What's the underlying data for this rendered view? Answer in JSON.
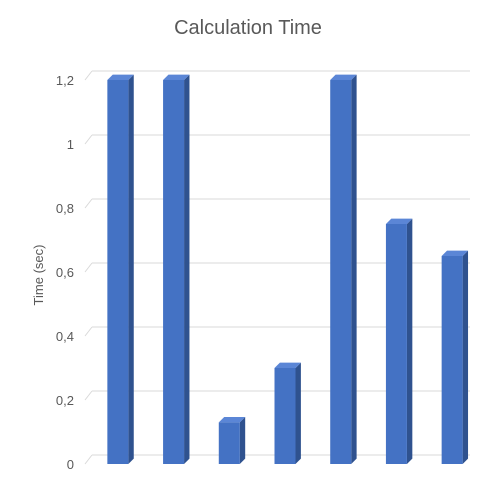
{
  "chart_data": {
    "type": "bar",
    "title": "Calculation Time",
    "xlabel": "",
    "ylabel": "Time (sec)",
    "ylim": [
      0,
      1.2
    ],
    "yticks": [
      "0",
      "0,2",
      "0,4",
      "0,6",
      "0,8",
      "1",
      "1,2"
    ],
    "grid": true,
    "legend": "none",
    "values": [
      1.2,
      1.2,
      0.13,
      0.3,
      1.2,
      0.75,
      0.65
    ]
  },
  "colors": {
    "bar_front": "#4472C4",
    "bar_side": "#2F528F",
    "bar_top": "#5B86D6",
    "gridline": "#d9d9d9",
    "text": "#595959"
  }
}
